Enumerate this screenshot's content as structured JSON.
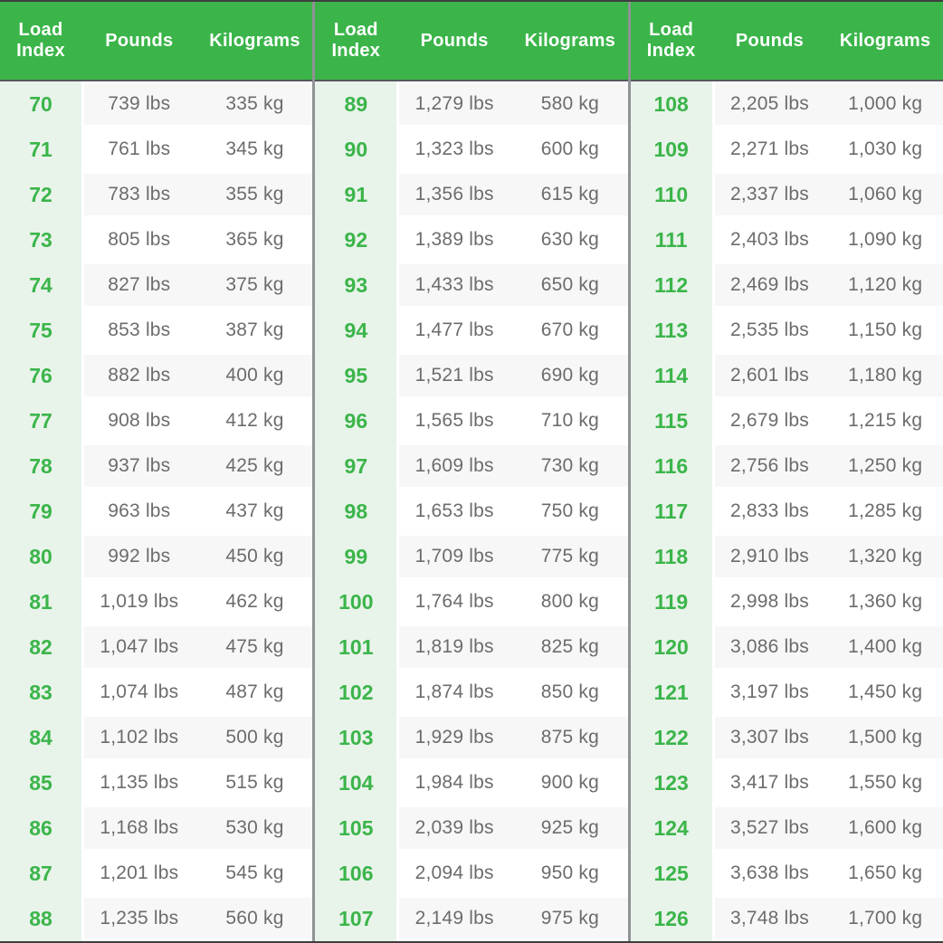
{
  "colors": {
    "header_green": "#3bb54a",
    "index_green": "#3bb54a",
    "index_column_bg": "#e8f3ea",
    "stripe_bg": "#f7f7f7",
    "divider_gray": "#909295",
    "value_text": "#6b6c6e",
    "header_text": "#ffffff"
  },
  "chart_data": {
    "type": "table",
    "columns": [
      "Load Index",
      "Pounds",
      "Kilograms"
    ],
    "groups": [
      {
        "rows": [
          [
            "70",
            "739 lbs",
            "335 kg"
          ],
          [
            "71",
            "761 lbs",
            "345 kg"
          ],
          [
            "72",
            "783 lbs",
            "355 kg"
          ],
          [
            "73",
            "805 lbs",
            "365 kg"
          ],
          [
            "74",
            "827 lbs",
            "375 kg"
          ],
          [
            "75",
            "853 lbs",
            "387 kg"
          ],
          [
            "76",
            "882 lbs",
            "400 kg"
          ],
          [
            "77",
            "908 lbs",
            "412 kg"
          ],
          [
            "78",
            "937 lbs",
            "425 kg"
          ],
          [
            "79",
            "963 lbs",
            "437 kg"
          ],
          [
            "80",
            "992 lbs",
            "450 kg"
          ],
          [
            "81",
            "1,019 lbs",
            "462 kg"
          ],
          [
            "82",
            "1,047 lbs",
            "475 kg"
          ],
          [
            "83",
            "1,074 lbs",
            "487 kg"
          ],
          [
            "84",
            "1,102 lbs",
            "500 kg"
          ],
          [
            "85",
            "1,135 lbs",
            "515 kg"
          ],
          [
            "86",
            "1,168 lbs",
            "530 kg"
          ],
          [
            "87",
            "1,201 lbs",
            "545 kg"
          ],
          [
            "88",
            "1,235 lbs",
            "560 kg"
          ]
        ]
      },
      {
        "rows": [
          [
            "89",
            "1,279 lbs",
            "580 kg"
          ],
          [
            "90",
            "1,323 lbs",
            "600 kg"
          ],
          [
            "91",
            "1,356 lbs",
            "615 kg"
          ],
          [
            "92",
            "1,389 lbs",
            "630 kg"
          ],
          [
            "93",
            "1,433 lbs",
            "650 kg"
          ],
          [
            "94",
            "1,477 lbs",
            "670 kg"
          ],
          [
            "95",
            "1,521 lbs",
            "690 kg"
          ],
          [
            "96",
            "1,565 lbs",
            "710 kg"
          ],
          [
            "97",
            "1,609 lbs",
            "730 kg"
          ],
          [
            "98",
            "1,653 lbs",
            "750 kg"
          ],
          [
            "99",
            "1,709 lbs",
            "775 kg"
          ],
          [
            "100",
            "1,764 lbs",
            "800 kg"
          ],
          [
            "101",
            "1,819 lbs",
            "825 kg"
          ],
          [
            "102",
            "1,874 lbs",
            "850 kg"
          ],
          [
            "103",
            "1,929 lbs",
            "875 kg"
          ],
          [
            "104",
            "1,984 lbs",
            "900 kg"
          ],
          [
            "105",
            "2,039 lbs",
            "925 kg"
          ],
          [
            "106",
            "2,094 lbs",
            "950 kg"
          ],
          [
            "107",
            "2,149 lbs",
            "975 kg"
          ]
        ]
      },
      {
        "rows": [
          [
            "108",
            "2,205 lbs",
            "1,000 kg"
          ],
          [
            "109",
            "2,271 lbs",
            "1,030 kg"
          ],
          [
            "110",
            "2,337 lbs",
            "1,060 kg"
          ],
          [
            "111",
            "2,403 lbs",
            "1,090 kg"
          ],
          [
            "112",
            "2,469 lbs",
            "1,120 kg"
          ],
          [
            "113",
            "2,535 lbs",
            "1,150 kg"
          ],
          [
            "114",
            "2,601 lbs",
            "1,180 kg"
          ],
          [
            "115",
            "2,679 lbs",
            "1,215 kg"
          ],
          [
            "116",
            "2,756 lbs",
            "1,250 kg"
          ],
          [
            "117",
            "2,833 lbs",
            "1,285 kg"
          ],
          [
            "118",
            "2,910 lbs",
            "1,320 kg"
          ],
          [
            "119",
            "2,998 lbs",
            "1,360 kg"
          ],
          [
            "120",
            "3,086 lbs",
            "1,400 kg"
          ],
          [
            "121",
            "3,197 lbs",
            "1,450 kg"
          ],
          [
            "122",
            "3,307 lbs",
            "1,500 kg"
          ],
          [
            "123",
            "3,417 lbs",
            "1,550 kg"
          ],
          [
            "124",
            "3,527 lbs",
            "1,600 kg"
          ],
          [
            "125",
            "3,638 lbs",
            "1,650 kg"
          ],
          [
            "126",
            "3,748 lbs",
            "1,700 kg"
          ]
        ]
      }
    ]
  }
}
